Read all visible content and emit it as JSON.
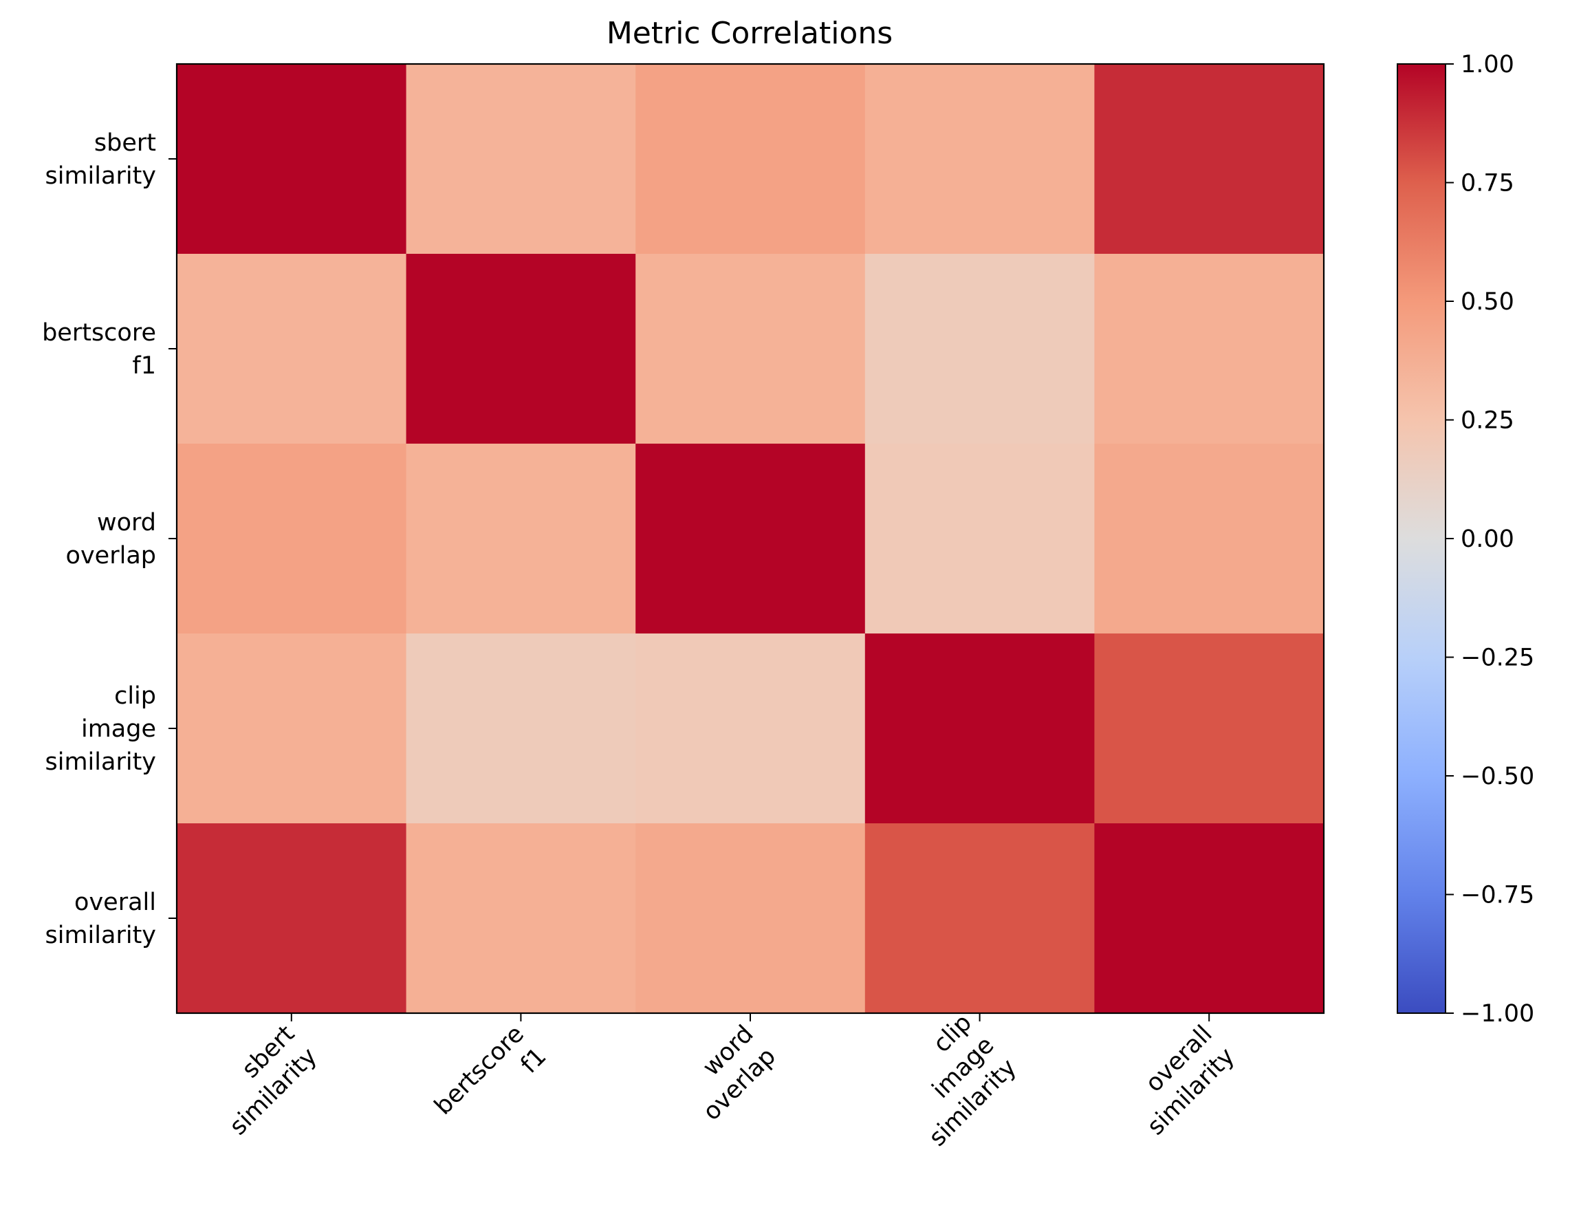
{
  "chart_data": {
    "type": "heatmap",
    "title": "Metric Correlations",
    "colormap": "coolwarm",
    "xlabel": "",
    "ylabel": "",
    "row_labels": [
      [
        "sbert",
        "similarity"
      ],
      [
        "bertscore",
        "f1"
      ],
      [
        "word",
        "overlap"
      ],
      [
        "clip",
        "image",
        "similarity"
      ],
      [
        "overall",
        "similarity"
      ]
    ],
    "col_labels": [
      [
        "sbert",
        "similarity"
      ],
      [
        "bertscore",
        "f1"
      ],
      [
        "word",
        "overlap"
      ],
      [
        "clip",
        "image",
        "similarity"
      ],
      [
        "overall",
        "similarity"
      ]
    ],
    "matrix": [
      [
        1.0,
        0.35,
        0.45,
        0.37,
        0.89
      ],
      [
        0.35,
        1.0,
        0.36,
        0.18,
        0.37
      ],
      [
        0.45,
        0.36,
        1.0,
        0.2,
        0.41
      ],
      [
        0.37,
        0.18,
        0.2,
        1.0,
        0.78
      ],
      [
        0.89,
        0.37,
        0.41,
        0.78,
        1.0
      ]
    ],
    "colorbar": {
      "range": [
        -1.0,
        1.0
      ],
      "ticks": [
        "1.00",
        "0.75",
        "0.50",
        "0.25",
        "0.00",
        "−0.25",
        "−0.50",
        "−0.75",
        "−1.00"
      ],
      "tick_values": [
        1.0,
        0.75,
        0.5,
        0.25,
        0.0,
        -0.25,
        -0.5,
        -0.75,
        -1.0
      ]
    },
    "colors": {
      "low": "#3b4cc0",
      "mid": "#dddddd",
      "high": "#b40426"
    }
  }
}
